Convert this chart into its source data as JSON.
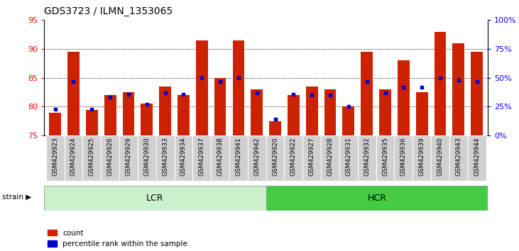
{
  "title": "GDS3723 / ILMN_1353065",
  "samples": [
    "GSM429923",
    "GSM429924",
    "GSM429925",
    "GSM429926",
    "GSM429929",
    "GSM429930",
    "GSM429933",
    "GSM429934",
    "GSM429937",
    "GSM429938",
    "GSM429941",
    "GSM429942",
    "GSM429920",
    "GSM429922",
    "GSM429927",
    "GSM429928",
    "GSM429931",
    "GSM429932",
    "GSM429935",
    "GSM429936",
    "GSM429939",
    "GSM429940",
    "GSM429943",
    "GSM429944"
  ],
  "count_values": [
    79.0,
    89.5,
    79.5,
    82.0,
    82.5,
    80.5,
    83.5,
    82.0,
    91.5,
    85.0,
    91.5,
    83.0,
    77.5,
    82.0,
    83.5,
    83.0,
    80.0,
    89.5,
    83.0,
    88.0,
    82.5,
    93.0,
    91.0,
    89.5
  ],
  "percentile_values_pct": [
    23,
    47,
    23,
    33,
    36,
    27,
    37,
    36,
    50,
    47,
    50,
    37,
    14,
    36,
    35,
    35,
    25,
    47,
    37,
    42,
    42,
    50,
    48,
    47
  ],
  "lcr_count": 12,
  "hcr_count": 12,
  "ylim_left": [
    75,
    95
  ],
  "yticks_left": [
    75,
    80,
    85,
    90,
    95
  ],
  "ylim_right": [
    0,
    100
  ],
  "yticks_right": [
    0,
    25,
    50,
    75,
    100
  ],
  "ytick_labels_right": [
    "0%",
    "25%",
    "50%",
    "75%",
    "100%"
  ],
  "bar_color": "#cc2200",
  "percentile_color": "#0000cc",
  "lcr_color": "#ccf0cc",
  "hcr_color": "#44cc44",
  "background_color": "#ffffff",
  "legend_count_label": "count",
  "legend_percentile_label": "percentile rank within the sample",
  "strain_label": "strain",
  "lcr_label": "LCR",
  "hcr_label": "HCR"
}
